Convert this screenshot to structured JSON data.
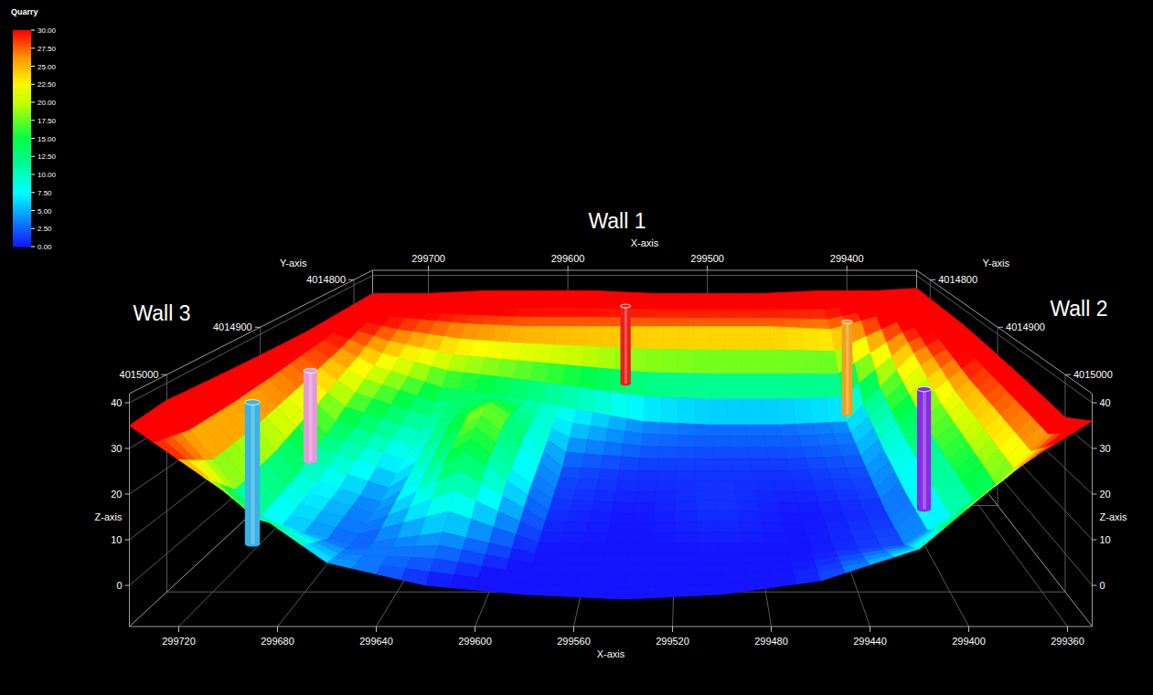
{
  "chart_data": {
    "type": "surface3d",
    "title": "Quarry",
    "annotations": [
      "Wall 1",
      "Wall 2",
      "Wall 3"
    ],
    "xlabel": "X-axis",
    "ylabel": "Y-axis",
    "zlabel": "Z-axis",
    "xlim": [
      299350,
      299740
    ],
    "xticks": [
      299360,
      299400,
      299440,
      299480,
      299520,
      299560,
      299600,
      299640,
      299680,
      299720
    ],
    "xticks_back": [
      299400,
      299500,
      299600,
      299700
    ],
    "ylim": [
      4014780,
      4015040
    ],
    "yticks": [
      4014800,
      4014900,
      4015000
    ],
    "zlim": [
      -9,
      42
    ],
    "zticks": [
      0,
      10,
      20,
      30,
      40
    ],
    "grid": true,
    "surface": {
      "x": [
        299740,
        299700,
        299660,
        299620,
        299580,
        299540,
        299500,
        299460,
        299420,
        299380,
        299350
      ],
      "y": [
        4014780,
        4014810,
        4014850,
        4014900,
        4014950,
        4015000,
        4015040
      ],
      "z": [
        [
          33,
          33,
          34,
          34,
          34,
          33,
          33,
          33,
          34,
          34,
          35
        ],
        [
          33,
          30,
          28,
          27,
          27,
          27,
          27,
          27,
          26,
          32,
          35
        ],
        [
          33,
          22,
          15,
          12,
          8,
          4,
          3,
          3,
          4,
          26,
          35
        ],
        [
          34,
          15,
          8,
          20,
          2,
          1,
          1,
          1,
          2,
          20,
          34
        ],
        [
          35,
          10,
          3,
          16,
          1,
          0,
          1,
          0,
          1,
          18,
          33
        ],
        [
          36,
          8,
          2,
          5,
          0,
          0,
          0,
          0,
          2,
          16,
          32
        ],
        [
          35,
          20,
          5,
          0,
          -2,
          -3,
          -2,
          1,
          8,
          26,
          36
        ]
      ]
    },
    "wells": [
      {
        "color": "#3ab4e6",
        "x": 299707,
        "y": 4014988,
        "z_top": 34,
        "z_bottom": 0
      },
      {
        "color": "#e59ad8",
        "x": 299699,
        "y": 4014936,
        "z_top": 35,
        "z_bottom": 11
      },
      {
        "color": "#e8201c",
        "x": 299554,
        "y": 4014819,
        "z_top": 36,
        "z_bottom": 9
      },
      {
        "color": "#f0a020",
        "x": 299415,
        "y": 4014832,
        "z_top": 33,
        "z_bottom": 2
      },
      {
        "color": "#8a2be2",
        "x": 299401,
        "y": 4014949,
        "z_top": 32,
        "z_bottom": 1
      }
    ],
    "colorbar": {
      "range": [
        0,
        30
      ],
      "ticks": [
        {
          "value": 0,
          "label": "0.00"
        },
        {
          "value": 2.5,
          "label": "2.50"
        },
        {
          "value": 5,
          "label": "5.00"
        },
        {
          "value": 7.5,
          "label": "7.50"
        },
        {
          "value": 10,
          "label": "10.00"
        },
        {
          "value": 12.5,
          "label": "12.50"
        },
        {
          "value": 15,
          "label": "15.00"
        },
        {
          "value": 17.5,
          "label": "17.50"
        },
        {
          "value": 20,
          "label": "20.00"
        },
        {
          "value": 22.5,
          "label": "22.50"
        },
        {
          "value": 25,
          "label": "25.00"
        },
        {
          "value": 27.5,
          "label": "27.50"
        },
        {
          "value": 30,
          "label": "30.00"
        }
      ]
    }
  }
}
